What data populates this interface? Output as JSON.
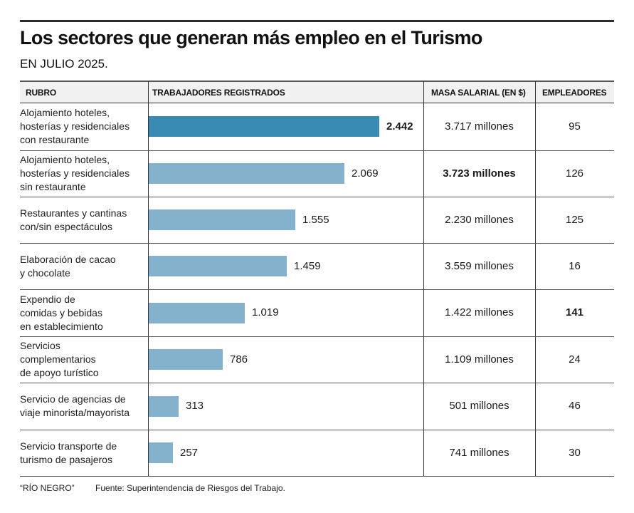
{
  "title": "Los sectores que generan más empleo en el Turismo",
  "subtitle": "EN JULIO 2025.",
  "headers": {
    "rubro": "RUBRO",
    "trabajadores": "TRABAJADORES REGISTRADOS",
    "masa": "MASA SALARIAL (EN $)",
    "empleadores": "EMPLEADORES"
  },
  "colors": {
    "highlight_bar": "#3a8bb3",
    "bar": "#84b1cb"
  },
  "rows": [
    {
      "rubro": "Alojamiento hoteles,\nhosterías y residenciales\ncon restaurante",
      "trabajadores_label": "2.442",
      "masa": "3.717 millones",
      "empleadores": "95",
      "highlight": "trabajadores"
    },
    {
      "rubro": "Alojamiento hoteles,\nhosterías y residenciales\nsin restaurante",
      "trabajadores_label": "2.069",
      "masa": "3.723 millones",
      "empleadores": "126",
      "highlight": "masa"
    },
    {
      "rubro": "Restaurantes y cantinas\ncon/sin espectáculos",
      "trabajadores_label": "1.555",
      "masa": "2.230 millones",
      "empleadores": "125",
      "highlight": ""
    },
    {
      "rubro": "Elaboración de cacao\ny chocolate",
      "trabajadores_label": "1.459",
      "masa": "3.559 millones",
      "empleadores": "16",
      "highlight": ""
    },
    {
      "rubro": "Expendio de\ncomidas y bebidas\nen establecimiento",
      "trabajadores_label": "1.019",
      "masa": "1.422 millones",
      "empleadores": "141",
      "highlight": "empleadores"
    },
    {
      "rubro": "Servicios\ncomplementarios\nde apoyo turístico",
      "trabajadores_label": "786",
      "masa": "1.109 millones",
      "empleadores": "24",
      "highlight": ""
    },
    {
      "rubro": "Servicio de agencias de\nviaje minorista/mayorista",
      "trabajadores_label": "313",
      "masa": "501 millones",
      "empleadores": "46",
      "highlight": ""
    },
    {
      "rubro": "Servicio transporte de\nturismo de pasajeros",
      "trabajadores_label": "257",
      "masa": "741 millones",
      "empleadores": "30",
      "highlight": ""
    }
  ],
  "footer": {
    "credit": "“RÍO NEGRO”",
    "source": "Fuente: Superintendencia de Riesgos del Trabajo."
  },
  "chart_data": {
    "type": "bar",
    "orientation": "horizontal",
    "title": "Los sectores que generan más empleo en el Turismo",
    "subtitle": "EN JULIO 2025.",
    "xlabel": "TRABAJADORES REGISTRADOS",
    "categories": [
      "Alojamiento hoteles, hosterías y residenciales con restaurante",
      "Alojamiento hoteles, hosterías y residenciales sin restaurante",
      "Restaurantes y cantinas con/sin espectáculos",
      "Elaboración de cacao y chocolate",
      "Expendio de comidas y bebidas en establecimiento",
      "Servicios complementarios de apoyo turístico",
      "Servicio de agencias de viaje minorista/mayorista",
      "Servicio transporte de turismo de pasajeros"
    ],
    "values": [
      2442,
      2069,
      1555,
      1459,
      1019,
      786,
      313,
      257
    ],
    "xlim": [
      0,
      2442
    ],
    "grid": false,
    "legend": "none"
  }
}
